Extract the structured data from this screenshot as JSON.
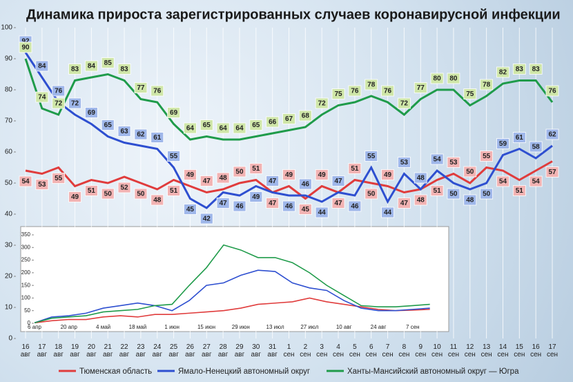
{
  "chart_data": [
    {
      "type": "line",
      "title": "Динамика прироста зарегистрированных случаев коронавирусной инфекции",
      "categories": [
        "16 авг",
        "17 авг",
        "18 авг",
        "19 авг",
        "20 авг",
        "21 авг",
        "22 авг",
        "23 авг",
        "24 авг",
        "25 авг",
        "26 авг",
        "27 авг",
        "28 авг",
        "29 авг",
        "30 авг",
        "31 авг",
        "1 сен",
        "2 сен",
        "3 сен",
        "4 сен",
        "5 сен",
        "6 сен",
        "7 сен",
        "8 сен",
        "9 сен",
        "10 сен",
        "11 сен",
        "12 сен",
        "13 сен",
        "14 сен",
        "15 сен",
        "16 сен",
        "17 сен"
      ],
      "series": [
        {
          "name": "Тюменская область",
          "color": "#e03c3c",
          "values": [
            54,
            53,
            55,
            49,
            51,
            50,
            52,
            50,
            48,
            51,
            49,
            47,
            48,
            50,
            51,
            47,
            49,
            45,
            49,
            47,
            51,
            50,
            49,
            47,
            48,
            51,
            53,
            50,
            55,
            54,
            51,
            54,
            57
          ]
        },
        {
          "name": "Ямало-Ненецкий автономный округ",
          "color": "#2e4fd0",
          "values": [
            92,
            84,
            76,
            72,
            69,
            65,
            63,
            62,
            61,
            55,
            45,
            42,
            47,
            46,
            49,
            47,
            46,
            46,
            44,
            47,
            46,
            55,
            44,
            53,
            48,
            54,
            50,
            48,
            50,
            59,
            61,
            58,
            62
          ]
        },
        {
          "name": "Ханты-Мансийский автономный округ — Югра",
          "color": "#1f9b4a",
          "values": [
            90,
            74,
            72,
            83,
            84,
            85,
            83,
            77,
            76,
            69,
            64,
            65,
            64,
            64,
            65,
            66,
            67,
            68,
            72,
            75,
            76,
            78,
            76,
            72,
            77,
            80,
            80,
            75,
            78,
            82,
            83,
            83,
            76
          ]
        }
      ],
      "ylim": [
        0,
        100
      ],
      "yticks": [
        0,
        10,
        20,
        30,
        40,
        50,
        60,
        70,
        80,
        90,
        100
      ],
      "grid": true
    },
    {
      "type": "line",
      "categories": [
        "6 апр",
        null,
        "20 апр",
        null,
        "4 май",
        null,
        "18 май",
        null,
        "1 июн",
        null,
        "15 июн",
        null,
        "29 июн",
        null,
        "13 июл",
        null,
        "27 июл",
        null,
        "10 авг",
        null,
        "24 авг",
        null,
        "7 сен",
        null
      ],
      "series": [
        {
          "color": "#e03c3c",
          "values": [
            2,
            10,
            15,
            15,
            25,
            30,
            25,
            35,
            35,
            40,
            45,
            50,
            60,
            75,
            80,
            85,
            100,
            85,
            75,
            65,
            55,
            50,
            52,
            55
          ]
        },
        {
          "color": "#2e4fd0",
          "values": [
            2,
            25,
            30,
            40,
            60,
            70,
            80,
            70,
            50,
            90,
            150,
            160,
            190,
            210,
            205,
            160,
            140,
            130,
            90,
            60,
            50,
            50,
            55,
            60
          ]
        },
        {
          "color": "#1f9b4a",
          "values": [
            2,
            20,
            25,
            30,
            45,
            50,
            55,
            70,
            75,
            150,
            220,
            310,
            290,
            260,
            260,
            240,
            200,
            150,
            110,
            70,
            65,
            65,
            70,
            75
          ]
        }
      ],
      "ylim": [
        0,
        350
      ],
      "yticks": [
        0,
        50,
        100,
        150,
        200,
        250,
        300,
        350
      ]
    }
  ]
}
